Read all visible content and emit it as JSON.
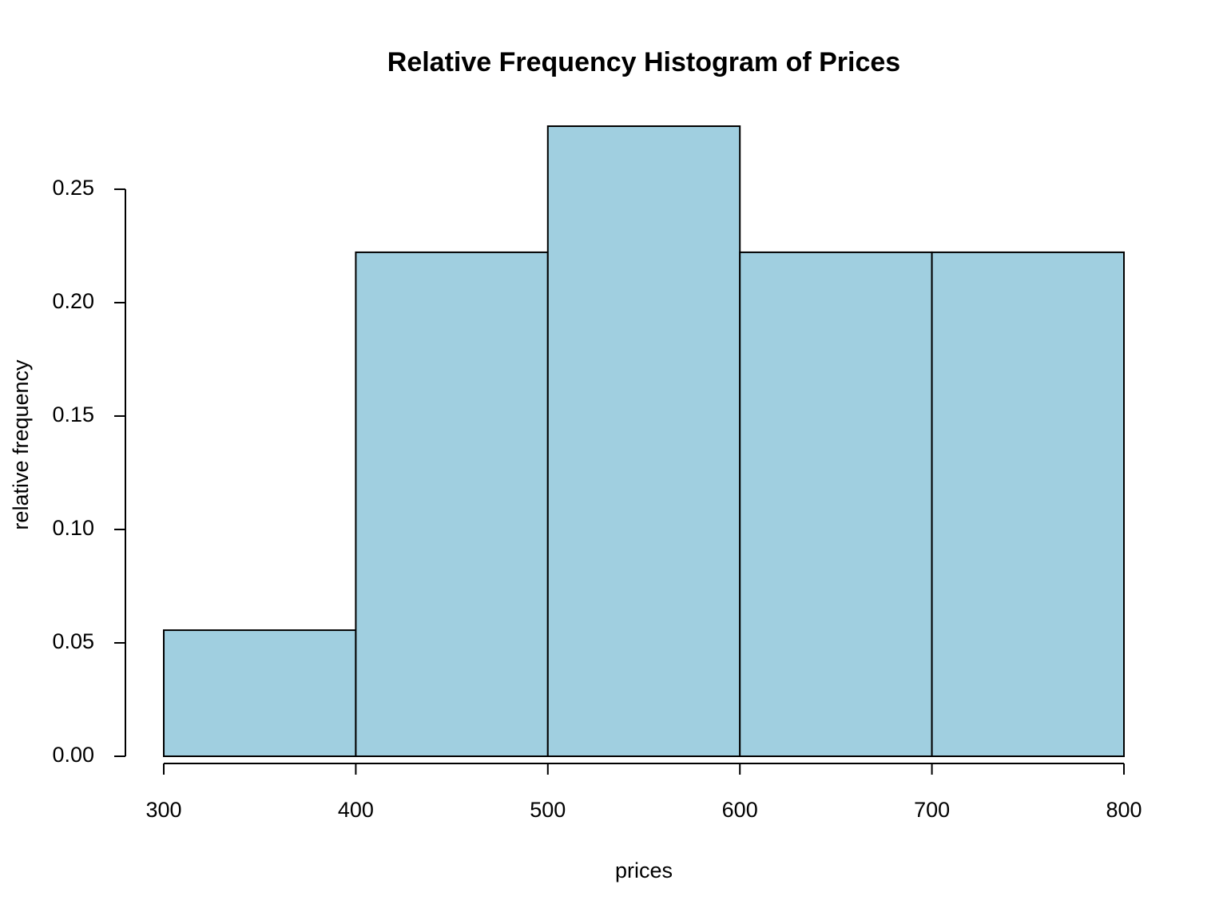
{
  "chart_data": {
    "type": "histogram",
    "title": "Relative Frequency Histogram of Prices",
    "x_label": "prices",
    "y_label": "relative frequency",
    "bins": [
      300,
      400,
      500,
      600,
      700,
      800
    ],
    "values": [
      0.0556,
      0.2222,
      0.2778,
      0.2222,
      0.2222
    ],
    "color": "#a0cfe0",
    "xlim": [
      300,
      800
    ],
    "xticks": [
      300,
      400,
      500,
      600,
      700,
      800
    ],
    "ylim": [
      0,
      0.2778
    ],
    "yticks": [
      {
        "value": 0,
        "label": "0.00"
      },
      {
        "value": 0.05,
        "label": "0.05"
      },
      {
        "value": 0.1,
        "label": "0.10"
      },
      {
        "value": 0.15,
        "label": "0.15"
      },
      {
        "value": 0.2,
        "label": "0.20"
      },
      {
        "value": 0.25,
        "label": "0.25"
      }
    ]
  }
}
